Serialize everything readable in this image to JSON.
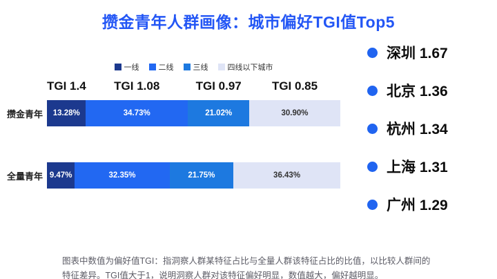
{
  "title": "攒金青年人群画像：城市偏好TGI值Top5",
  "colors": {
    "title": "#2356f5",
    "dot": "#2064f0",
    "segment_text_light": "#ffffff",
    "segment_text_dark": "#333333"
  },
  "chart_data": {
    "type": "bar",
    "orientation": "horizontal",
    "stacked": true,
    "unit": "%",
    "xlim": [
      0,
      100
    ],
    "legend_position": "top-center",
    "legend": [
      {
        "label": "一线",
        "color": "#1c398e"
      },
      {
        "label": "二线",
        "color": "#2268f2"
      },
      {
        "label": "三线",
        "color": "#1d79e0"
      },
      {
        "label": "四线以下城市",
        "color": "#dfe4f6"
      }
    ],
    "tgi_labels": [
      "TGI 1.4",
      "TGI 1.08",
      "TGI 0.97",
      "TGI 0.85"
    ],
    "categories": [
      "攒金青年",
      "全量青年"
    ],
    "rows": [
      {
        "label": "攒金青年",
        "segments": [
          {
            "value": 13.28,
            "text": "13.28%"
          },
          {
            "value": 34.73,
            "text": "34.73%"
          },
          {
            "value": 21.02,
            "text": "21.02%"
          },
          {
            "value": 30.9,
            "text": "30.90%"
          }
        ]
      },
      {
        "label": "全量青年",
        "segments": [
          {
            "value": 9.47,
            "text": "9.47%"
          },
          {
            "value": 32.35,
            "text": "32.35%"
          },
          {
            "value": 21.75,
            "text": "21.75%"
          },
          {
            "value": 36.43,
            "text": "36.43%"
          }
        ]
      }
    ]
  },
  "ranking": {
    "items": [
      {
        "city": "深圳",
        "tgi": "1.67"
      },
      {
        "city": "北京",
        "tgi": "1.36"
      },
      {
        "city": "杭州",
        "tgi": "1.34"
      },
      {
        "city": "上海",
        "tgi": "1.31"
      },
      {
        "city": "广州",
        "tgi": "1.29"
      }
    ]
  },
  "footnote": "图表中数值为偏好值TGI：指洞察人群某特征占比与全量人群该特征占比的比值，以比较人群间的特征差异。TGI值大于1，说明洞察人群对该特征偏好明显，数值越大，偏好越明显。"
}
